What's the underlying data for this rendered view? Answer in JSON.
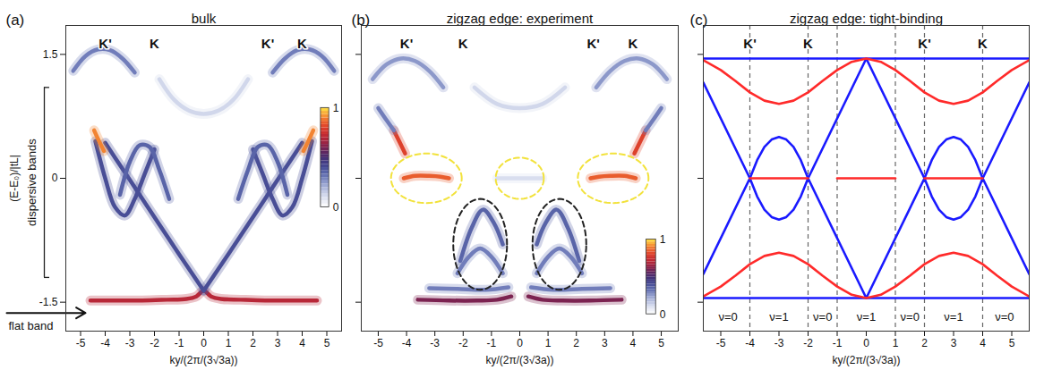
{
  "chart_data": [
    {
      "type": "bands",
      "panel": "(a)",
      "title": "bulk",
      "x_label": "ky/(2π/(3√3a))",
      "y_label": "(E-E₀)/|tL|",
      "xlim": [
        -5.6,
        5.6
      ],
      "ylim": [
        -1.85,
        1.85
      ],
      "xticks": [
        -5,
        -4,
        -3,
        -2,
        -1,
        0,
        1,
        2,
        3,
        4,
        5
      ],
      "yticks": [
        -1.5,
        0,
        1.5
      ],
      "k_points": [
        {
          "label": "K'",
          "x": -4
        },
        {
          "label": "K",
          "x": -2
        },
        {
          "label": "K'",
          "x": 2.6
        },
        {
          "label": "K",
          "x": 4
        }
      ],
      "annotations": [
        {
          "text": "dispersive bands",
          "y": -0.05,
          "span": [
            -1.2,
            1.1
          ]
        },
        {
          "text": "flat band",
          "y": -1.79,
          "target": [
            -4.8,
            -1.63
          ]
        }
      ],
      "colorbar": {
        "range": [
          0,
          1
        ],
        "ticks": [
          0,
          1
        ]
      },
      "bands": [
        {
          "intensity": 0.7,
          "x": [
            -4.6,
            -3.5,
            -2.5,
            -1.5,
            -0.7,
            -0.3,
            0,
            0.3,
            0.7,
            1.5,
            2.5,
            3.5,
            4.6
          ],
          "values": [
            -1.48,
            -1.48,
            -1.48,
            -1.47,
            -1.46,
            -1.43,
            -1.36,
            -1.43,
            -1.46,
            -1.47,
            -1.48,
            -1.48,
            -1.48
          ]
        },
        {
          "intensity": 0.4,
          "x": [
            0,
            -1,
            -2,
            -3,
            -3.6,
            -4.0
          ],
          "values": [
            -1.36,
            -0.92,
            -0.47,
            -0.02,
            0.25,
            0.43
          ]
        },
        {
          "intensity": 0.4,
          "x": [
            0,
            1,
            2,
            3,
            3.6,
            4.0
          ],
          "values": [
            -1.36,
            -0.92,
            -0.47,
            -0.02,
            0.25,
            0.43
          ]
        },
        {
          "intensity": 0.4,
          "x": [
            -4.4,
            -4.0,
            -3.6,
            -3.2,
            -2.8,
            -2.4,
            -2.0
          ],
          "values": [
            0.45,
            0.0,
            -0.35,
            -0.45,
            -0.25,
            0.05,
            0.35
          ]
        },
        {
          "intensity": 0.4,
          "x": [
            4.4,
            4.0,
            3.6,
            3.2,
            2.8,
            2.4,
            2.0
          ],
          "values": [
            0.45,
            0.0,
            -0.35,
            -0.45,
            -0.25,
            0.05,
            0.35
          ]
        },
        {
          "intensity": 0.35,
          "x": [
            -3.4,
            -3.0,
            -2.6,
            -2.2,
            -1.8,
            -1.4
          ],
          "values": [
            -0.2,
            0.2,
            0.4,
            0.38,
            0.1,
            -0.25
          ]
        },
        {
          "intensity": 0.35,
          "x": [
            3.4,
            3.0,
            2.6,
            2.2,
            1.8,
            1.4
          ],
          "values": [
            -0.2,
            0.2,
            0.4,
            0.38,
            0.1,
            -0.25
          ]
        },
        {
          "intensity": 0.9,
          "x": [
            -4.45,
            -4.25,
            -4.05
          ],
          "values": [
            0.58,
            0.45,
            0.33
          ]
        },
        {
          "intensity": 0.9,
          "x": [
            4.45,
            4.25,
            4.05
          ],
          "values": [
            0.58,
            0.45,
            0.33
          ]
        },
        {
          "intensity": 0.3,
          "x": [
            -5.3,
            -4.8,
            -4.3,
            -3.8,
            -3.3,
            -2.8
          ],
          "values": [
            1.3,
            1.48,
            1.56,
            1.55,
            1.45,
            1.28
          ]
        },
        {
          "intensity": 0.3,
          "x": [
            5.3,
            4.8,
            4.3,
            3.8,
            3.3,
            2.8
          ],
          "values": [
            1.3,
            1.48,
            1.56,
            1.55,
            1.45,
            1.28
          ]
        },
        {
          "intensity": 0.12,
          "x": [
            -1.8,
            -1.2,
            -0.6,
            0,
            0.6,
            1.2,
            1.8
          ],
          "values": [
            1.2,
            0.95,
            0.82,
            0.78,
            0.82,
            0.95,
            1.2
          ]
        }
      ]
    },
    {
      "type": "bands",
      "panel": "(b)",
      "title": "zigzag edge: experiment",
      "x_label": "ky/(2π/(3√3a))",
      "tick_labels": "x",
      "xlim": [
        -5.6,
        5.6
      ],
      "ylim": [
        -1.85,
        1.85
      ],
      "xticks": [
        -5,
        -4,
        -3,
        -2,
        -1,
        0,
        1,
        2,
        3,
        4,
        5
      ],
      "yticks": [
        -1.5,
        0,
        1.5
      ],
      "k_points": [
        {
          "label": "K'",
          "x": -4
        },
        {
          "label": "K",
          "x": -2
        },
        {
          "label": "K'",
          "x": 2.6
        },
        {
          "label": "K",
          "x": 4
        }
      ],
      "colorbar": {
        "range": [
          0,
          1
        ],
        "ticks": [
          0,
          1
        ]
      },
      "highlights": [
        {
          "x": -3.3,
          "y": 0.0,
          "rx": 1.25,
          "ry": 0.3,
          "color": "#f2e23c"
        },
        {
          "x": 0,
          "y": 0.0,
          "rx": 0.85,
          "ry": 0.25,
          "color": "#f2e23c"
        },
        {
          "x": 3.3,
          "y": 0.0,
          "rx": 1.25,
          "ry": 0.3,
          "color": "#f2e23c"
        },
        {
          "x": -1.4,
          "y": -0.8,
          "rx": 0.95,
          "ry": 0.55,
          "color": "#222222"
        },
        {
          "x": 1.4,
          "y": -0.8,
          "rx": 0.95,
          "ry": 0.55,
          "color": "#222222"
        }
      ],
      "bands": [
        {
          "intensity": 0.6,
          "x": [
            -3.6,
            -2.5,
            -1.5,
            -0.8,
            -0.3
          ],
          "values": [
            -1.47,
            -1.48,
            -1.48,
            -1.47,
            -1.43
          ]
        },
        {
          "intensity": 0.6,
          "x": [
            3.6,
            2.5,
            1.5,
            0.8,
            0.3
          ],
          "values": [
            -1.47,
            -1.48,
            -1.48,
            -1.47,
            -1.43
          ]
        },
        {
          "intensity": 0.3,
          "x": [
            -3.2,
            -2.2,
            -1.2,
            -0.4
          ],
          "values": [
            -1.33,
            -1.34,
            -1.35,
            -1.32
          ]
        },
        {
          "intensity": 0.3,
          "x": [
            3.2,
            2.2,
            1.2,
            0.4
          ],
          "values": [
            -1.33,
            -1.34,
            -1.35,
            -1.32
          ]
        },
        {
          "intensity": 0.85,
          "x": [
            -4.1,
            -3.7,
            -3.2,
            -2.8,
            -2.5
          ],
          "values": [
            0.0,
            0.03,
            0.03,
            0.02,
            0.0
          ]
        },
        {
          "intensity": 0.85,
          "x": [
            4.1,
            3.7,
            3.2,
            2.8,
            2.5
          ],
          "values": [
            0.0,
            0.03,
            0.03,
            0.02,
            0.0
          ]
        },
        {
          "intensity": 0.8,
          "x": [
            -4.45,
            -4.25,
            -4.05
          ],
          "values": [
            0.58,
            0.44,
            0.3
          ]
        },
        {
          "intensity": 0.8,
          "x": [
            4.45,
            4.25,
            4.05
          ],
          "values": [
            0.58,
            0.44,
            0.3
          ]
        },
        {
          "intensity": 0.1,
          "x": [
            -0.8,
            -0.4,
            0,
            0.4,
            0.8
          ],
          "values": [
            0,
            0,
            0,
            0,
            0
          ]
        },
        {
          "intensity": 0.35,
          "x": [
            -2.1,
            -1.7,
            -1.3,
            -0.9,
            -0.6
          ],
          "values": [
            -1.0,
            -0.6,
            -0.38,
            -0.55,
            -0.8
          ]
        },
        {
          "intensity": 0.35,
          "x": [
            2.1,
            1.7,
            1.3,
            0.9,
            0.6
          ],
          "values": [
            -1.0,
            -0.6,
            -0.38,
            -0.55,
            -0.8
          ]
        },
        {
          "intensity": 0.3,
          "x": [
            -2.2,
            -1.8,
            -1.4,
            -1.0,
            -0.6
          ],
          "values": [
            -1.15,
            -0.95,
            -0.85,
            -0.95,
            -1.15
          ]
        },
        {
          "intensity": 0.3,
          "x": [
            2.2,
            1.8,
            1.4,
            1.0,
            0.6
          ],
          "values": [
            -1.15,
            -0.95,
            -0.85,
            -0.95,
            -1.15
          ]
        },
        {
          "intensity": 0.25,
          "x": [
            -5.2,
            -4.7,
            -4.2,
            -3.7,
            -3.2,
            -2.7
          ],
          "values": [
            1.2,
            1.38,
            1.45,
            1.42,
            1.3,
            1.1
          ]
        },
        {
          "intensity": 0.25,
          "x": [
            5.2,
            4.7,
            4.2,
            3.7,
            3.2,
            2.7
          ],
          "values": [
            1.2,
            1.38,
            1.45,
            1.42,
            1.3,
            1.1
          ]
        },
        {
          "intensity": 0.3,
          "x": [
            -5.0,
            -4.7,
            -4.45
          ],
          "values": [
            0.85,
            0.7,
            0.58
          ]
        },
        {
          "intensity": 0.3,
          "x": [
            5.0,
            4.7,
            4.45
          ],
          "values": [
            0.85,
            0.7,
            0.58
          ]
        },
        {
          "intensity": 0.12,
          "x": [
            -1.6,
            -0.8,
            0,
            0.8,
            1.6
          ],
          "values": [
            1.1,
            0.9,
            0.85,
            0.9,
            1.1
          ]
        }
      ]
    },
    {
      "type": "line",
      "panel": "(c)",
      "title": "zigzag edge: tight-binding",
      "x_label": "ky/(2π/(3√3a))",
      "tick_labels": "x",
      "xlim": [
        -5.6,
        5.6
      ],
      "ylim": [
        -1.85,
        1.85
      ],
      "xticks": [
        -5,
        -4,
        -3,
        -2,
        -1,
        0,
        1,
        2,
        3,
        4,
        5
      ],
      "yticks": [
        -1.5,
        0,
        1.5
      ],
      "k_points": [
        {
          "label": "K'",
          "x": -4
        },
        {
          "label": "K",
          "x": -2
        },
        {
          "label": "K'",
          "x": 2
        },
        {
          "label": "K",
          "x": 4
        }
      ],
      "boundaries": {
        "values": [
          -4,
          -2,
          -1,
          1,
          2,
          4
        ],
        "line_style": "dashed",
        "color": "#666666"
      },
      "region_labels": [
        {
          "label": "ν=0",
          "x": -4.75
        },
        {
          "label": "ν=1",
          "x": -3
        },
        {
          "label": "ν=0",
          "x": -1.5
        },
        {
          "label": "ν=1",
          "x": 0
        },
        {
          "label": "ν=0",
          "x": 1.5
        },
        {
          "label": "ν=1",
          "x": 3
        },
        {
          "label": "ν=0",
          "x": 4.75
        }
      ],
      "series": [
        {
          "color": "#1a1aff",
          "x": [
            -5.6,
            5.6
          ],
          "values": [
            1.45,
            1.45
          ]
        },
        {
          "color": "#1a1aff",
          "x": [
            -5.6,
            5.6
          ],
          "values": [
            -1.45,
            -1.45
          ]
        },
        {
          "color": "#1a1aff",
          "x": [
            -5.6,
            -4,
            -3.75,
            -3.5,
            -3.25,
            -3,
            -2.75,
            -2.5,
            -2.25,
            -2,
            0,
            2,
            2.25,
            2.5,
            2.75,
            3,
            3.25,
            3.5,
            3.75,
            4,
            5.6
          ],
          "values": [
            1.16,
            0,
            -0.22,
            -0.38,
            -0.47,
            -0.5,
            -0.47,
            -0.38,
            -0.22,
            0,
            1.45,
            0,
            -0.22,
            -0.38,
            -0.47,
            -0.5,
            -0.47,
            -0.38,
            -0.22,
            0,
            1.16
          ]
        },
        {
          "color": "#1a1aff",
          "x": [
            -5.6,
            -4,
            -3.75,
            -3.5,
            -3.25,
            -3,
            -2.75,
            -2.5,
            -2.25,
            -2,
            0,
            2,
            2.25,
            2.5,
            2.75,
            3,
            3.25,
            3.5,
            3.75,
            4,
            5.6
          ],
          "values": [
            -1.16,
            0,
            0.22,
            0.38,
            0.47,
            0.5,
            0.47,
            0.38,
            0.22,
            0,
            -1.45,
            0,
            0.22,
            0.38,
            0.47,
            0.5,
            0.47,
            0.38,
            0.22,
            0,
            -1.16
          ]
        },
        {
          "color": "#ff2a2a",
          "x": [
            -5.6,
            -5,
            -4.5,
            -4,
            -3.5,
            -3,
            -2.5,
            -2,
            -1.5,
            -1,
            -0.5,
            0,
            0.5,
            1,
            1.5,
            2,
            2.5,
            3,
            3.5,
            4,
            4.5,
            5,
            5.6
          ],
          "values": [
            1.43,
            1.31,
            1.18,
            1.04,
            0.94,
            0.9,
            0.94,
            1.04,
            1.18,
            1.31,
            1.41,
            1.45,
            1.41,
            1.31,
            1.18,
            1.04,
            0.94,
            0.9,
            0.94,
            1.04,
            1.18,
            1.31,
            1.43
          ]
        },
        {
          "color": "#ff2a2a",
          "x": [
            -5.6,
            -5,
            -4.5,
            -4,
            -3.5,
            -3,
            -2.5,
            -2,
            -1.5,
            -1,
            -0.5,
            0,
            0.5,
            1,
            1.5,
            2,
            2.5,
            3,
            3.5,
            4,
            4.5,
            5,
            5.6
          ],
          "values": [
            -1.43,
            -1.31,
            -1.18,
            -1.04,
            -0.94,
            -0.9,
            -0.94,
            -1.04,
            -1.18,
            -1.31,
            -1.41,
            -1.45,
            -1.41,
            -1.31,
            -1.18,
            -1.04,
            -0.94,
            -0.9,
            -0.94,
            -1.04,
            -1.18,
            -1.31,
            -1.43
          ]
        },
        {
          "color": "#ff2a2a",
          "x": [
            -4,
            -2
          ],
          "values": [
            0,
            0
          ]
        },
        {
          "color": "#ff2a2a",
          "x": [
            -1,
            1
          ],
          "values": [
            0,
            0
          ]
        },
        {
          "color": "#ff2a2a",
          "x": [
            2,
            4
          ],
          "values": [
            0,
            0
          ]
        }
      ]
    }
  ]
}
